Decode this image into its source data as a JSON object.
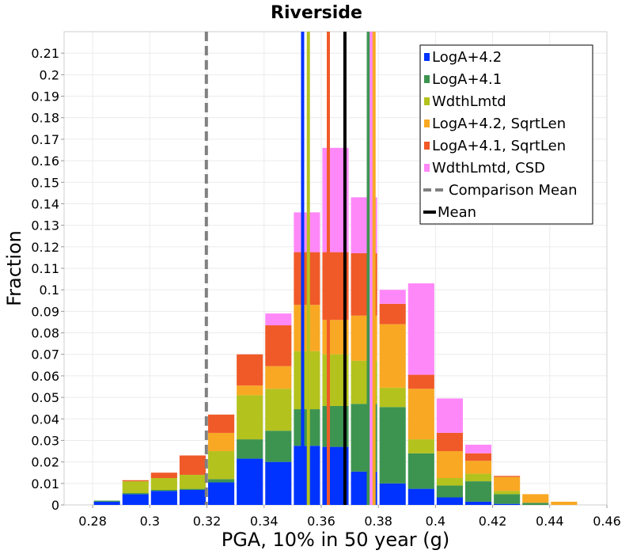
{
  "chart_data": {
    "type": "bar",
    "stacked": true,
    "title": "Riverside",
    "xlabel": "PGA, 10% in 50 year (g)",
    "ylabel": "Fraction",
    "xlim": [
      0.27,
      0.46
    ],
    "ylim": [
      0,
      0.22
    ],
    "xticks": [
      "0.28",
      "0.3",
      "0.32",
      "0.34",
      "0.36",
      "0.38",
      "0.4",
      "0.42",
      "0.44",
      "0.46"
    ],
    "yticks": [
      "0",
      "0.01",
      "0.02",
      "0.03",
      "0.04",
      "0.05",
      "0.06",
      "0.07",
      "0.08",
      "0.09",
      "0.1",
      "0.11",
      "0.12",
      "0.13",
      "0.14",
      "0.15",
      "0.16",
      "0.17",
      "0.18",
      "0.19",
      "0.2",
      "0.21"
    ],
    "grid": true,
    "legend_position": "top-right",
    "bin_width": 0.01,
    "bin_centers": [
      0.285,
      0.295,
      0.305,
      0.315,
      0.325,
      0.335,
      0.345,
      0.355,
      0.365,
      0.375,
      0.385,
      0.395,
      0.405,
      0.415,
      0.425,
      0.435,
      0.445,
      0.455
    ],
    "series": [
      {
        "name": "LogA+4.2",
        "color": "#0033ff",
        "values": [
          0.0015,
          0.005,
          0.0065,
          0.007,
          0.0105,
          0.0215,
          0.02,
          0.0275,
          0.027,
          0.0155,
          0.01,
          0.0075,
          0.0035,
          0.0015,
          0.0005,
          0,
          0,
          0
        ]
      },
      {
        "name": "LogA+4.1",
        "color": "#3d9450",
        "values": [
          0.0005,
          0.0005,
          0.0005,
          0.0005,
          0.0015,
          0.009,
          0.0145,
          0.017,
          0.019,
          0.0315,
          0.0355,
          0.0165,
          0.0055,
          0.0095,
          0.0045,
          0.001,
          0,
          0
        ]
      },
      {
        "name": "WdthLmtd",
        "color": "#b4c21e",
        "values": [
          0,
          0.0055,
          0.0055,
          0.0065,
          0.013,
          0.0205,
          0.0195,
          0.027,
          0.024,
          0.02,
          0.009,
          0.0065,
          0.0035,
          0.0035,
          0.0015,
          0,
          0,
          0
        ]
      },
      {
        "name": "LogA+4.2, SqrtLen",
        "color": "#f8a823",
        "values": [
          0,
          0,
          0,
          0,
          0.0085,
          0.0045,
          0.0105,
          0.0215,
          0.016,
          0.021,
          0.0295,
          0.0235,
          0.0125,
          0.006,
          0.0065,
          0.004,
          0.0015,
          0
        ]
      },
      {
        "name": "LogA+4.1, SqrtLen",
        "color": "#f05a28",
        "values": [
          0,
          0.0005,
          0.0025,
          0.009,
          0.0085,
          0.0145,
          0.019,
          0.0245,
          0.0315,
          0.029,
          0.0095,
          0.0065,
          0.0085,
          0.0035,
          0.0005,
          0,
          0,
          0
        ]
      },
      {
        "name": "WdthLmtd, CSD",
        "color": "#ff88f8",
        "values": [
          0,
          0,
          0,
          0,
          0,
          0,
          0.0055,
          0.0185,
          0.0485,
          0.026,
          0.0065,
          0.0425,
          0.016,
          0.004,
          0,
          0,
          0,
          0
        ]
      }
    ],
    "vertical_lines": [
      {
        "series": "LogA+4.2",
        "x": 0.3535,
        "color": "#0033ff"
      },
      {
        "series": "WdthLmtd",
        "x": 0.3555,
        "color": "#b4c21e"
      },
      {
        "series": "LogA+4.1, SqrtLen",
        "x": 0.3625,
        "color": "#f05a28"
      },
      {
        "series": "LogA+4.1",
        "x": 0.3765,
        "color": "#3d9450"
      },
      {
        "series": "WdthLmtd, CSD",
        "x": 0.3775,
        "color": "#ff88f8"
      },
      {
        "series": "LogA+4.2, SqrtLen",
        "x": 0.3785,
        "color": "#f8a823"
      }
    ],
    "comparison_mean": {
      "label": "Comparison Mean",
      "x": 0.3198,
      "color": "#808080"
    },
    "mean": {
      "label": "Mean",
      "x": 0.3683,
      "color": "#000000"
    }
  }
}
